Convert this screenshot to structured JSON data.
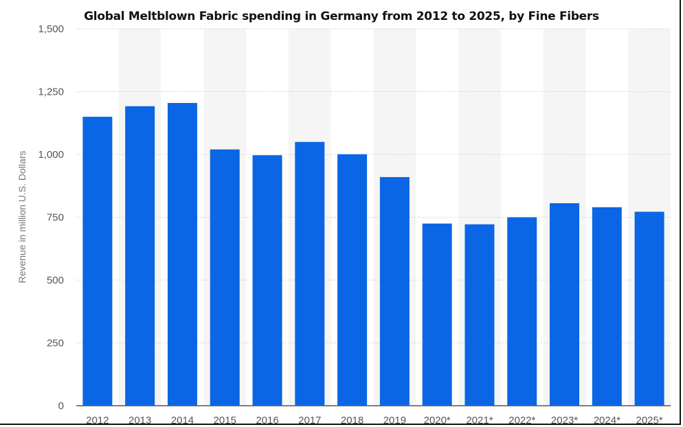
{
  "chart_data": {
    "type": "bar",
    "title": "Global Meltblown Fabric spending in Germany from 2012 to 2025, by Fine Fibers",
    "ylabel": "Revenue in million U.S. Dollars",
    "xlabel": "",
    "categories": [
      "2012",
      "2013",
      "2014",
      "2015",
      "2016",
      "2017",
      "2018",
      "2019",
      "2020*",
      "2021*",
      "2022*",
      "2023*",
      "2024*",
      "2025*"
    ],
    "values": [
      1150,
      1192,
      1205,
      1020,
      997,
      1050,
      1001,
      910,
      725,
      722,
      750,
      806,
      790,
      772
    ],
    "ylim": [
      0,
      1500
    ],
    "yticks": [
      0,
      250,
      500,
      750,
      1000,
      1250,
      1500
    ],
    "ytick_labels": [
      "0",
      "250",
      "500",
      "750",
      "1,000",
      "1,250",
      "1,500"
    ],
    "grid": true,
    "bar_color": "#0a66e4",
    "band_color": "#f5f5f5"
  }
}
